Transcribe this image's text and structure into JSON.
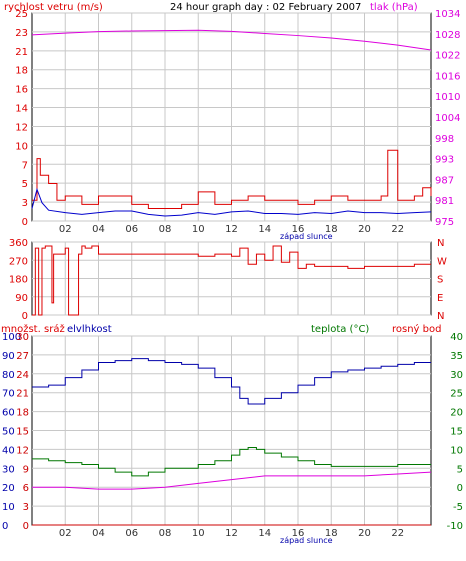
{
  "page_title": "24 hour graph day : 02 February 2007",
  "colors": {
    "wind_avg": "#0000cc",
    "wind_gust": "#dd0000",
    "pressure": "#dd00dd",
    "direction": "#dd0000",
    "humidity": "#0000aa",
    "radiation": "#cc0000",
    "temperature": "#007700",
    "dewpoint": "#dd00dd",
    "grid": "#c8c8c8",
    "text_axis": "#333333"
  },
  "chart_data": [
    {
      "type": "line",
      "title": "24 hour graph day : 02 February 2007",
      "left_label": "rychlost vetru (m/s)",
      "right_label": "tlak (hPa)",
      "x_ticks": [
        "02",
        "04",
        "06",
        "08",
        "10",
        "12",
        "14",
        "16",
        "18",
        "20",
        "22"
      ],
      "x_note": "západ slunce",
      "y_left_ticks": [
        "25",
        "23",
        "21",
        "18",
        "16",
        "14",
        "12",
        "10",
        "7",
        "5",
        "3",
        "0"
      ],
      "y_right_ticks": [
        "1034",
        "1028",
        "1022",
        "1016",
        "1010",
        "1004",
        "998",
        "993",
        "987",
        "981",
        "975"
      ],
      "ylim_left": [
        0,
        25
      ],
      "ylim_right": [
        975,
        1034
      ],
      "x_range_hours": [
        0,
        24
      ],
      "series": [
        {
          "key": "gust",
          "axis": "left",
          "x": [
            0,
            0.3,
            0.5,
            1,
            1.5,
            2,
            3,
            4,
            5,
            6,
            7,
            8,
            9,
            10,
            11,
            12,
            13,
            14,
            15,
            16,
            17,
            18,
            19,
            20,
            20.5,
            21,
            21.4,
            22,
            23,
            23.5,
            24
          ],
          "values": [
            2.5,
            7.5,
            5.5,
            4.5,
            2.5,
            3,
            2,
            3,
            3,
            2,
            1.5,
            1.5,
            2,
            3.5,
            2,
            2.5,
            3,
            2.5,
            2.5,
            2,
            2.5,
            3,
            2.5,
            2.5,
            2.5,
            3,
            8.5,
            2.5,
            3,
            4,
            3
          ]
        },
        {
          "key": "avg",
          "axis": "left",
          "x": [
            0,
            0.3,
            0.6,
            1,
            2,
            3,
            4,
            5,
            6,
            7,
            8,
            9,
            10,
            11,
            12,
            13,
            14,
            15,
            16,
            17,
            18,
            19,
            20,
            21,
            22,
            23,
            24
          ],
          "values": [
            1.5,
            3.8,
            2.2,
            1.3,
            1,
            0.8,
            1,
            1.2,
            1.2,
            0.8,
            0.6,
            0.7,
            1,
            0.8,
            1.1,
            1.2,
            0.9,
            0.9,
            0.8,
            1,
            0.9,
            1.2,
            1,
            1,
            0.9,
            1,
            1.1
          ]
        },
        {
          "key": "pressure",
          "axis": "right",
          "x": [
            0,
            2,
            4,
            6,
            8,
            10,
            12,
            14,
            16,
            18,
            20,
            22,
            24
          ],
          "values": [
            1027.8,
            1028.3,
            1028.7,
            1028.9,
            1029.0,
            1029.1,
            1028.8,
            1028.2,
            1027.6,
            1026.9,
            1026.0,
            1024.9,
            1023.5
          ]
        }
      ]
    },
    {
      "type": "line",
      "title": "",
      "y_left_ticks": [
        "360",
        "270",
        "180",
        "90",
        "0"
      ],
      "y_right_ticks": [
        "N",
        "W",
        "S",
        "E",
        "N"
      ],
      "ylim_left": [
        0,
        360
      ],
      "x_range_hours": [
        0,
        24
      ],
      "series": [
        {
          "key": "direction",
          "x": [
            0,
            0.2,
            0.4,
            0.6,
            0.8,
            1,
            1.2,
            1.3,
            1.6,
            2,
            2.2,
            2.5,
            2.8,
            3,
            3.2,
            3.6,
            4,
            6,
            8,
            10,
            10.5,
            11,
            12,
            12.5,
            13,
            13.5,
            14,
            14.5,
            15,
            15.5,
            16,
            16.5,
            17,
            18,
            19,
            20,
            21,
            22,
            23,
            24
          ],
          "values": [
            0,
            330,
            0,
            330,
            340,
            340,
            60,
            300,
            300,
            330,
            0,
            0,
            300,
            340,
            330,
            340,
            300,
            300,
            300,
            290,
            290,
            300,
            290,
            330,
            250,
            300,
            270,
            340,
            260,
            310,
            230,
            250,
            240,
            240,
            230,
            240,
            240,
            240,
            250,
            250
          ]
        }
      ]
    },
    {
      "type": "line",
      "title": "",
      "left_label_1": "množst.",
      "left_label_2": "sráž",
      "left_label_3": "elvlhkost",
      "right_label_1": "teplota (°C)",
      "right_label_2": "rosný bod",
      "x_ticks": [
        "02",
        "04",
        "06",
        "08",
        "10",
        "12",
        "14",
        "16",
        "18",
        "20",
        "22"
      ],
      "x_note": "západ slunce",
      "y_humidity_ticks": [
        "100",
        "90",
        "80",
        "70",
        "60",
        "50",
        "40",
        "30",
        "20",
        "10",
        "0"
      ],
      "y_rain_ticks": [
        "30",
        "27",
        "24",
        "21",
        "18",
        "15",
        "12",
        "9",
        "6",
        "3",
        "0"
      ],
      "y_temp_ticks": [
        "40",
        "35",
        "30",
        "25",
        "20",
        "15",
        "10",
        "5",
        "0",
        "-5",
        "-10"
      ],
      "ylim_humidity": [
        0,
        100
      ],
      "ylim_temp": [
        -10,
        40
      ],
      "x_range_hours": [
        0,
        24
      ],
      "series": [
        {
          "key": "humidity",
          "axis": "humidity",
          "x": [
            0,
            1,
            2,
            3,
            4,
            5,
            6,
            7,
            8,
            9,
            10,
            11,
            12,
            12.5,
            13,
            13.5,
            14,
            15,
            16,
            17,
            18,
            19,
            20,
            21,
            22,
            23,
            24
          ],
          "values": [
            73,
            74,
            78,
            82,
            86,
            87,
            88,
            87,
            86,
            85,
            83,
            78,
            73,
            67,
            64,
            64,
            67,
            70,
            74,
            78,
            81,
            82,
            83,
            84,
            85,
            86,
            86
          ]
        },
        {
          "key": "temperature",
          "axis": "temp",
          "x": [
            0,
            1,
            2,
            3,
            4,
            5,
            6,
            7,
            8,
            9,
            10,
            11,
            12,
            12.5,
            13,
            13.5,
            14,
            15,
            16,
            17,
            18,
            19,
            20,
            21,
            22,
            23,
            24
          ],
          "values": [
            7.5,
            7,
            6.5,
            6,
            5,
            4,
            3,
            4,
            5,
            5,
            6,
            7,
            8.5,
            10,
            10.5,
            10,
            9,
            8,
            7,
            6,
            5.5,
            5.5,
            5.5,
            5.5,
            6,
            6,
            6
          ]
        },
        {
          "key": "dewpoint",
          "axis": "temp",
          "x": [
            0,
            2,
            4,
            6,
            8,
            10,
            12,
            14,
            16,
            18,
            20,
            22,
            24
          ],
          "values": [
            0,
            0,
            -0.5,
            -0.5,
            0,
            1,
            2,
            3,
            3,
            3,
            3,
            3.5,
            4
          ]
        },
        {
          "key": "rain",
          "axis": "rain",
          "x": [
            0,
            24
          ],
          "values": [
            0,
            0
          ]
        }
      ]
    }
  ]
}
